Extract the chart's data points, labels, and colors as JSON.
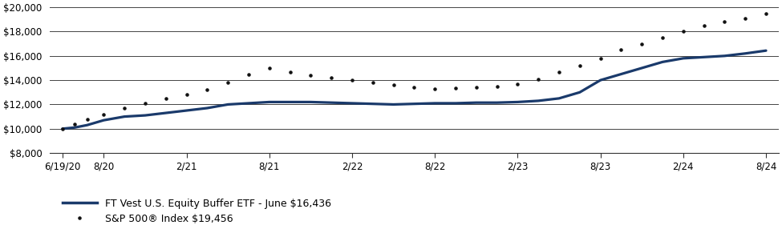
{
  "title": "",
  "xlabels": [
    "6/19/20",
    "8/20",
    "2/21",
    "8/21",
    "2/22",
    "8/22",
    "2/23",
    "8/23",
    "2/24",
    "8/24"
  ],
  "xtick_positions": [
    0,
    1,
    3,
    5,
    7,
    9,
    11,
    13,
    15,
    17
  ],
  "etf_data": [
    [
      0,
      10000
    ],
    [
      0.3,
      10100
    ],
    [
      0.6,
      10300
    ],
    [
      1,
      10700
    ],
    [
      1.5,
      11000
    ],
    [
      2,
      11100
    ],
    [
      2.5,
      11300
    ],
    [
      3,
      11500
    ],
    [
      3.5,
      11700
    ],
    [
      4,
      12000
    ],
    [
      4.5,
      12100
    ],
    [
      5,
      12200
    ],
    [
      5.5,
      12200
    ],
    [
      6,
      12200
    ],
    [
      6.5,
      12150
    ],
    [
      7,
      12100
    ],
    [
      7.5,
      12050
    ],
    [
      8,
      12000
    ],
    [
      8.5,
      12050
    ],
    [
      9,
      12100
    ],
    [
      9.5,
      12100
    ],
    [
      10,
      12150
    ],
    [
      10.5,
      12150
    ],
    [
      11,
      12200
    ],
    [
      11.5,
      12300
    ],
    [
      12,
      12500
    ],
    [
      12.5,
      13000
    ],
    [
      13,
      14000
    ],
    [
      13.5,
      14500
    ],
    [
      14,
      15000
    ],
    [
      14.5,
      15500
    ],
    [
      15,
      15800
    ],
    [
      15.5,
      15900
    ],
    [
      16,
      16000
    ],
    [
      16.5,
      16200
    ],
    [
      17,
      16436
    ]
  ],
  "sp500_data": [
    [
      0,
      10000
    ],
    [
      0.3,
      10400
    ],
    [
      0.6,
      10800
    ],
    [
      1,
      11200
    ],
    [
      1.5,
      11700
    ],
    [
      2,
      12100
    ],
    [
      2.5,
      12500
    ],
    [
      3,
      12800
    ],
    [
      3.5,
      13200
    ],
    [
      4,
      13800
    ],
    [
      4.5,
      14500
    ],
    [
      5,
      15000
    ],
    [
      5.5,
      14700
    ],
    [
      6,
      14400
    ],
    [
      6.5,
      14200
    ],
    [
      7,
      14000
    ],
    [
      7.5,
      13800
    ],
    [
      8,
      13600
    ],
    [
      8.5,
      13400
    ],
    [
      9,
      13300
    ],
    [
      9.5,
      13350
    ],
    [
      10,
      13400
    ],
    [
      10.5,
      13500
    ],
    [
      11,
      13700
    ],
    [
      11.5,
      14100
    ],
    [
      12,
      14700
    ],
    [
      12.5,
      15200
    ],
    [
      13,
      15800
    ],
    [
      13.5,
      16500
    ],
    [
      14,
      17000
    ],
    [
      14.5,
      17500
    ],
    [
      15,
      18000
    ],
    [
      15.5,
      18500
    ],
    [
      16,
      18800
    ],
    [
      16.5,
      19100
    ],
    [
      17,
      19456
    ]
  ],
  "etf_color": "#1a3a6b",
  "sp500_color": "#111111",
  "etf_label": "FT Vest U.S. Equity Buffer ETF - June $16,436",
  "sp500_label": "S&P 500® Index $19,456",
  "ylim": [
    8000,
    20000
  ],
  "yticks": [
    8000,
    10000,
    12000,
    14000,
    16000,
    18000,
    20000
  ],
  "bg_color": "#ffffff",
  "grid_color": "#444444",
  "figsize": [
    9.75,
    2.81
  ],
  "dpi": 100
}
